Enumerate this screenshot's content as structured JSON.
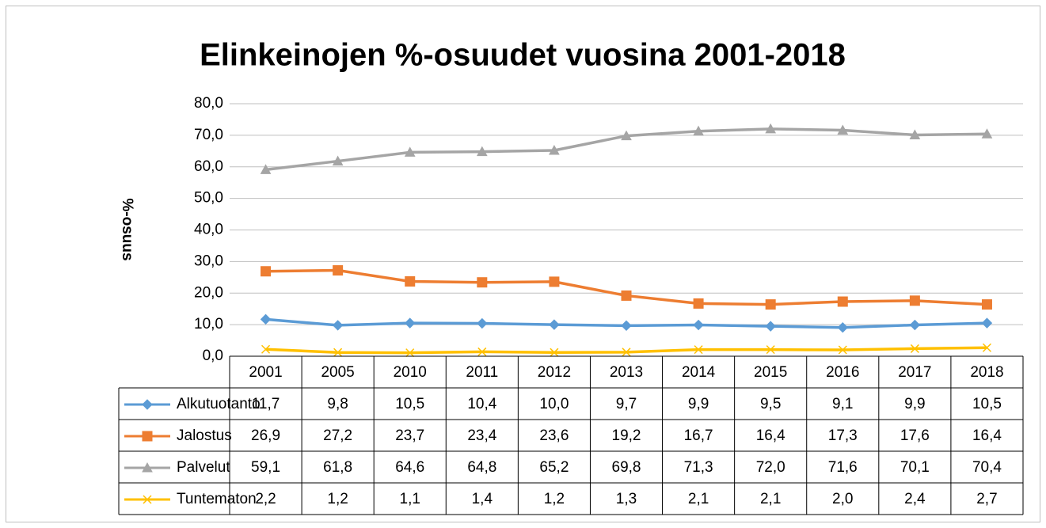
{
  "chart_data": {
    "type": "line",
    "title": "Elinkeinojen %-osuudet vuosina 2001-2018",
    "y_label": "%-osuus",
    "categories": [
      "2001",
      "2005",
      "2010",
      "2011",
      "2012",
      "2013",
      "2014",
      "2015",
      "2016",
      "2017",
      "2018"
    ],
    "series": [
      {
        "name": "Alkutuotanto",
        "color": "#5b9bd5",
        "marker": "diamond",
        "values": [
          11.7,
          9.8,
          10.5,
          10.4,
          10.0,
          9.7,
          9.9,
          9.5,
          9.1,
          9.9,
          10.5
        ],
        "value_labels": [
          "11,7",
          "9,8",
          "10,5",
          "10,4",
          "10,0",
          "9,7",
          "9,9",
          "9,5",
          "9,1",
          "9,9",
          "10,5"
        ]
      },
      {
        "name": "Jalostus",
        "color": "#ed7d31",
        "marker": "square",
        "values": [
          26.9,
          27.2,
          23.7,
          23.4,
          23.6,
          19.2,
          16.7,
          16.4,
          17.3,
          17.6,
          16.4
        ],
        "value_labels": [
          "26,9",
          "27,2",
          "23,7",
          "23,4",
          "23,6",
          "19,2",
          "16,7",
          "16,4",
          "17,3",
          "17,6",
          "16,4"
        ]
      },
      {
        "name": "Palvelut",
        "color": "#a5a5a5",
        "marker": "triangle",
        "values": [
          59.1,
          61.8,
          64.6,
          64.8,
          65.2,
          69.8,
          71.3,
          72.0,
          71.6,
          70.1,
          70.4
        ],
        "value_labels": [
          "59,1",
          "61,8",
          "64,6",
          "64,8",
          "65,2",
          "69,8",
          "71,3",
          "72,0",
          "71,6",
          "70,1",
          "70,4"
        ]
      },
      {
        "name": "Tuntematon",
        "color": "#ffc000",
        "marker": "x",
        "values": [
          2.2,
          1.2,
          1.1,
          1.4,
          1.2,
          1.3,
          2.1,
          2.1,
          2.0,
          2.4,
          2.7
        ],
        "value_labels": [
          "2,2",
          "1,2",
          "1,1",
          "1,4",
          "1,2",
          "1,3",
          "2,1",
          "2,1",
          "2,0",
          "2,4",
          "2,7"
        ]
      }
    ],
    "ylim": [
      0,
      80
    ],
    "yticks": [
      {
        "value": 0,
        "label": "0,0"
      },
      {
        "value": 10,
        "label": "10,0"
      },
      {
        "value": 20,
        "label": "20,0"
      },
      {
        "value": 30,
        "label": "30,0"
      },
      {
        "value": 40,
        "label": "40,0"
      },
      {
        "value": 50,
        "label": "50,0"
      },
      {
        "value": 60,
        "label": "60,0"
      },
      {
        "value": 70,
        "label": "70,0"
      },
      {
        "value": 80,
        "label": "80,0"
      }
    ],
    "grid": true,
    "data_table": true
  }
}
